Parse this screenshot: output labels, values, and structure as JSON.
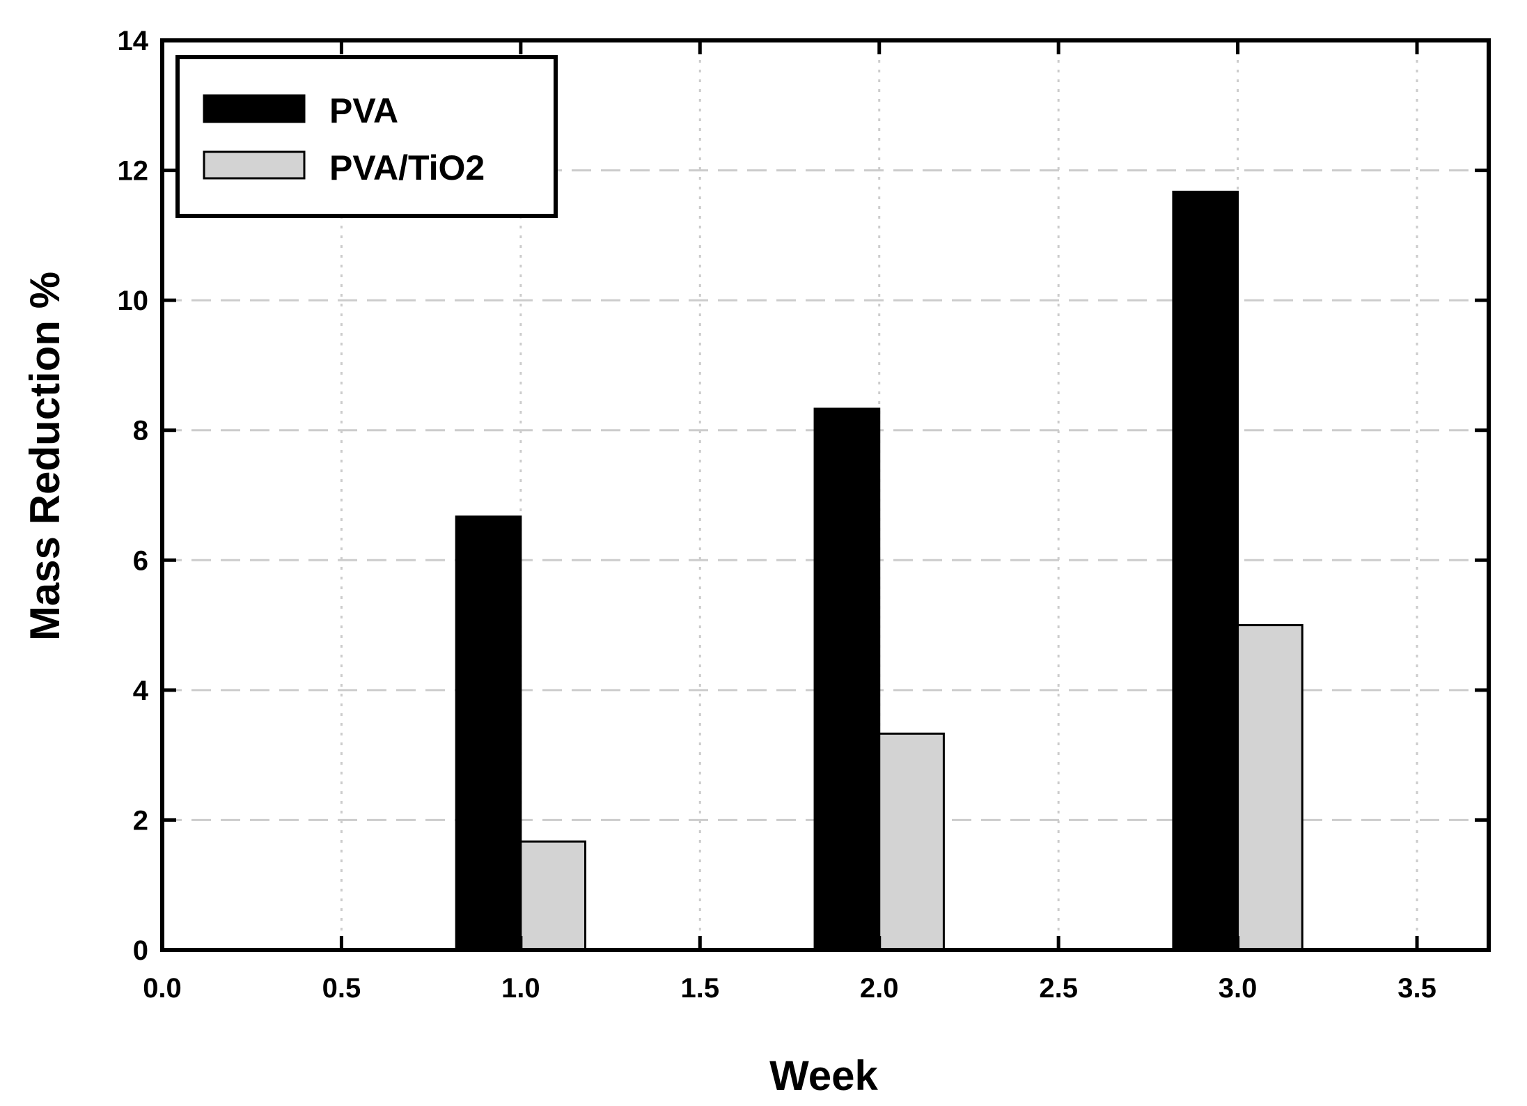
{
  "chart_data": {
    "type": "bar",
    "title": "",
    "xlabel": "Week",
    "ylabel": "Mass Reduction %",
    "xlim": [
      0,
      3.7
    ],
    "ylim": [
      0,
      14
    ],
    "x_ticks": [
      0.0,
      0.5,
      1.0,
      1.5,
      2.0,
      2.5,
      3.0,
      3.5
    ],
    "x_tick_labels": [
      "0.0",
      "0.5",
      "1.0",
      "1.5",
      "2.0",
      "2.5",
      "3.0",
      "3.5"
    ],
    "y_ticks": [
      0,
      2,
      4,
      6,
      8,
      10,
      12,
      14
    ],
    "y_tick_labels": [
      "0",
      "2",
      "4",
      "6",
      "8",
      "10",
      "12",
      "14"
    ],
    "grid": true,
    "legend_position": "top-left",
    "bar_width": 0.18,
    "x": [
      1.0,
      2.0,
      3.0
    ],
    "series": [
      {
        "name": "PVA",
        "color": "#000000",
        "values": [
          6.67,
          8.33,
          11.67
        ]
      },
      {
        "name": "PVA/TiO2",
        "color": "#d3d3d3",
        "values": [
          1.67,
          3.33,
          5.0
        ]
      }
    ]
  }
}
